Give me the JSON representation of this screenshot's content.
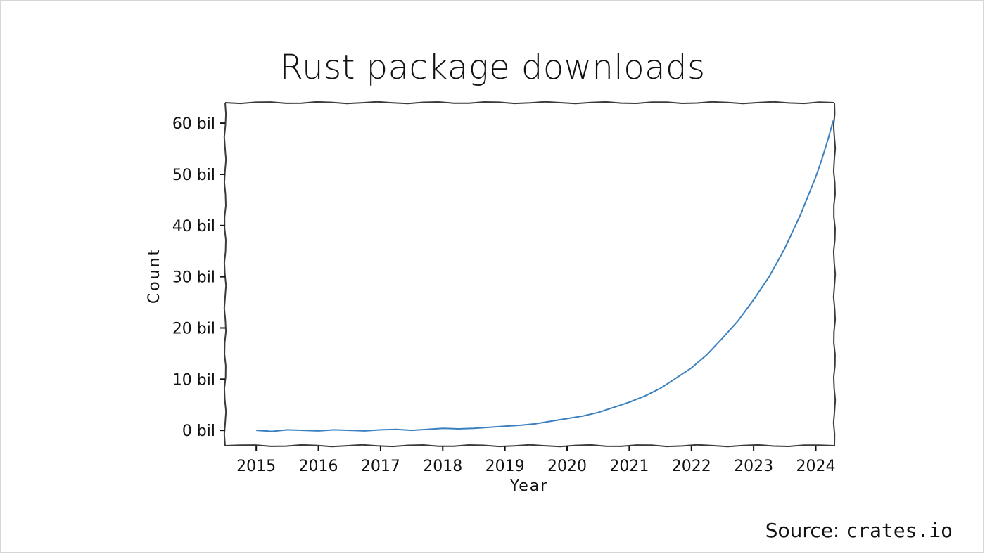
{
  "chart_data": {
    "type": "line",
    "title": "Rust package downloads",
    "xlabel": "Year",
    "ylabel": "Count",
    "x_ticks": [
      2015,
      2016,
      2017,
      2018,
      2019,
      2020,
      2021,
      2022,
      2023,
      2024
    ],
    "x_tick_labels": [
      "2015",
      "2016",
      "2017",
      "2018",
      "2019",
      "2020",
      "2021",
      "2022",
      "2023",
      "2024"
    ],
    "y_ticks": [
      0,
      10,
      20,
      30,
      40,
      50,
      60
    ],
    "y_tick_labels": [
      "0 bil",
      "10 bil",
      "20 bil",
      "30 bil",
      "40 bil",
      "50 bil",
      "60 bil"
    ],
    "xlim": [
      2014.5,
      2024.3
    ],
    "ylim": [
      -3,
      64
    ],
    "grid": false,
    "line_color": "#3a80c0",
    "series": [
      {
        "x": [
          2015.0,
          2015.25,
          2015.5,
          2015.75,
          2016.0,
          2016.25,
          2016.5,
          2016.75,
          2017.0,
          2017.25,
          2017.5,
          2017.75,
          2018.0,
          2018.25,
          2018.5,
          2018.75,
          2019.0,
          2019.25,
          2019.5,
          2019.75,
          2020.0,
          2020.25,
          2020.5,
          2020.75,
          2021.0,
          2021.25,
          2021.5,
          2021.75,
          2022.0,
          2022.25,
          2022.5,
          2022.75,
          2023.0,
          2023.25,
          2023.5,
          2023.75,
          2024.0,
          2024.1,
          2024.2,
          2024.28
        ],
        "y": [
          0.0,
          -0.2,
          0.1,
          0.0,
          -0.1,
          0.1,
          0.0,
          -0.1,
          0.1,
          0.2,
          0.0,
          0.2,
          0.4,
          0.3,
          0.4,
          0.6,
          0.8,
          1.0,
          1.3,
          1.8,
          2.3,
          2.8,
          3.5,
          4.5,
          5.5,
          6.7,
          8.2,
          10.2,
          12.2,
          14.8,
          18.0,
          21.4,
          25.5,
          30.0,
          35.5,
          42.0,
          49.5,
          53.0,
          57.0,
          60.5
        ]
      }
    ]
  },
  "source": {
    "prefix": "Source: ",
    "site": "crates.io"
  }
}
